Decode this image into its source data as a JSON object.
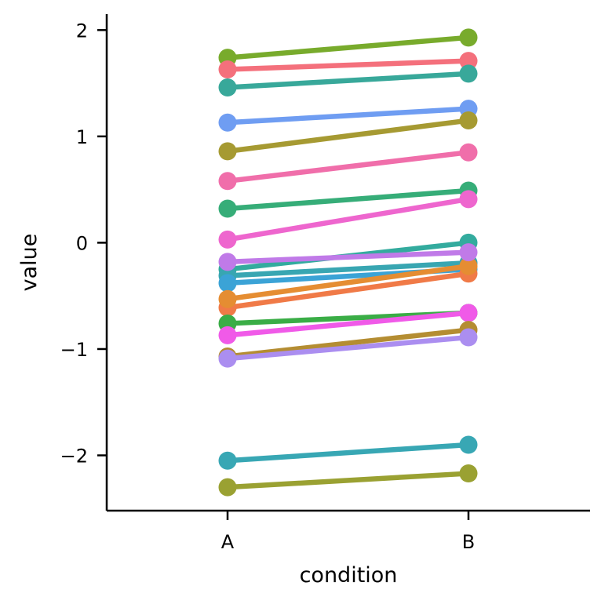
{
  "chart_data": {
    "type": "line",
    "title": "",
    "xlabel": "condition",
    "ylabel": "value",
    "categories": [
      "A",
      "B"
    ],
    "ylim": [
      -2.52,
      2.15
    ],
    "yticks": [
      -2,
      -1,
      0,
      1,
      2
    ],
    "ytick_labels": [
      "−2",
      "−1",
      "0",
      "1",
      "2"
    ],
    "grid": false,
    "legend": "none",
    "series": [
      {
        "color": "#78ab2c",
        "values": [
          1.74,
          1.93
        ]
      },
      {
        "color": "#f4707c",
        "values": [
          1.63,
          1.71
        ]
      },
      {
        "color": "#38a89a",
        "values": [
          1.46,
          1.59
        ]
      },
      {
        "color": "#6f9df2",
        "values": [
          1.13,
          1.26
        ]
      },
      {
        "color": "#a69a32",
        "values": [
          0.86,
          1.15
        ]
      },
      {
        "color": "#f06eaa",
        "values": [
          0.58,
          0.85
        ]
      },
      {
        "color": "#36ad78",
        "values": [
          0.32,
          0.49
        ]
      },
      {
        "color": "#ee66ce",
        "values": [
          0.03,
          0.41
        ]
      },
      {
        "color": "#33ab9e",
        "values": [
          -0.25,
          0.0
        ]
      },
      {
        "color": "#38a6b2",
        "values": [
          -0.31,
          -0.19
        ]
      },
      {
        "color": "#3ba3d6",
        "values": [
          -0.38,
          -0.25
        ]
      },
      {
        "color": "#f07a47",
        "values": [
          -0.61,
          -0.29
        ]
      },
      {
        "color": "#e58d32",
        "values": [
          -0.53,
          -0.22
        ]
      },
      {
        "color": "#3aad46",
        "values": [
          -0.76,
          -0.66
        ]
      },
      {
        "color": "#f05ae8",
        "values": [
          -0.87,
          -0.66
        ]
      },
      {
        "color": "#b48d32",
        "values": [
          -1.07,
          -0.82
        ]
      },
      {
        "color": "#ab8ef0",
        "values": [
          -1.09,
          -0.89
        ]
      },
      {
        "color": "#c07ae8",
        "values": [
          -0.18,
          -0.09
        ]
      },
      {
        "color": "#38a7b4",
        "values": [
          -2.05,
          -1.9
        ]
      },
      {
        "color": "#9aa132",
        "values": [
          -2.3,
          -2.17
        ]
      }
    ]
  }
}
